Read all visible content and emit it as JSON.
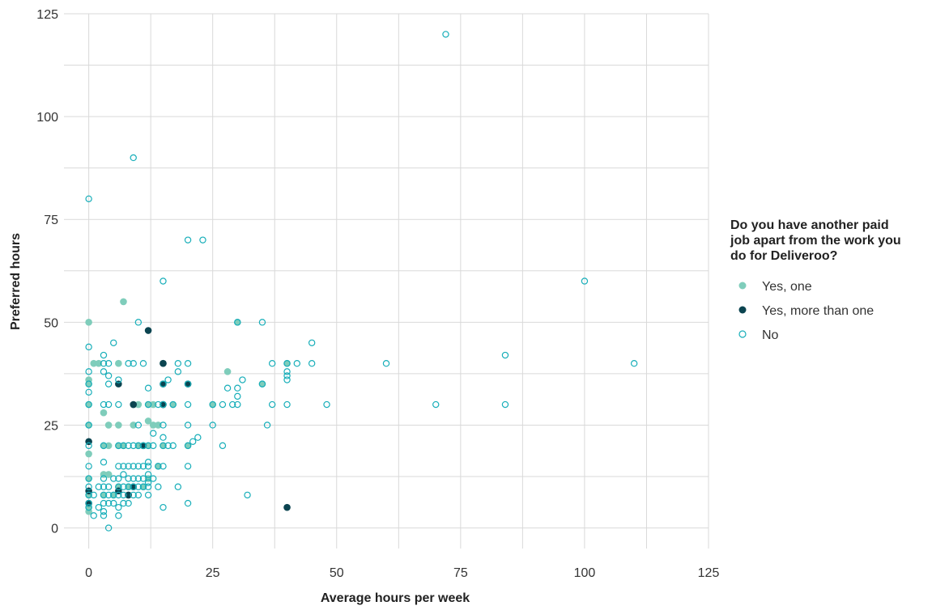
{
  "chart_data": {
    "type": "scatter",
    "xlabel": "Average hours per week",
    "ylabel": "Preferred hours",
    "xlim": [
      -5,
      125
    ],
    "ylim": [
      -5,
      125
    ],
    "x_ticks": [
      0,
      25,
      50,
      75,
      100,
      125
    ],
    "y_ticks": [
      0,
      25,
      50,
      75,
      100,
      125
    ],
    "grid": true,
    "legend": {
      "title_lines": [
        "Do you have another paid",
        "job apart from the work you",
        "do for Deliveroo?"
      ],
      "placement": "right"
    },
    "colors": {
      "yes_one": "#7fcdbb",
      "yes_more": "#0b4450",
      "no": "#17aeb9"
    },
    "series": [
      {
        "name": "Yes, one",
        "marker": "filled",
        "points": [
          [
            0,
            50
          ],
          [
            0,
            36
          ],
          [
            0,
            35
          ],
          [
            0,
            30
          ],
          [
            0,
            25
          ],
          [
            0,
            18
          ],
          [
            0,
            12
          ],
          [
            0,
            8
          ],
          [
            0,
            5
          ],
          [
            0,
            4
          ],
          [
            1,
            40
          ],
          [
            2,
            40
          ],
          [
            3,
            28
          ],
          [
            3,
            20
          ],
          [
            3,
            13
          ],
          [
            3,
            8
          ],
          [
            4,
            25
          ],
          [
            4,
            20
          ],
          [
            4,
            13
          ],
          [
            5,
            8
          ],
          [
            6,
            40
          ],
          [
            6,
            25
          ],
          [
            6,
            20
          ],
          [
            6,
            10
          ],
          [
            7,
            55
          ],
          [
            7,
            20
          ],
          [
            8,
            10
          ],
          [
            8,
            8
          ],
          [
            9,
            30
          ],
          [
            9,
            25
          ],
          [
            10,
            30
          ],
          [
            10,
            20
          ],
          [
            11,
            20
          ],
          [
            11,
            10
          ],
          [
            12,
            30
          ],
          [
            12,
            26
          ],
          [
            12,
            20
          ],
          [
            12,
            12
          ],
          [
            13,
            30
          ],
          [
            13,
            25
          ],
          [
            14,
            25
          ],
          [
            14,
            15
          ],
          [
            15,
            40
          ],
          [
            15,
            30
          ],
          [
            15,
            20
          ],
          [
            17,
            30
          ],
          [
            20,
            35
          ],
          [
            20,
            20
          ],
          [
            25,
            30
          ],
          [
            28,
            38
          ],
          [
            30,
            50
          ],
          [
            35,
            35
          ],
          [
            40,
            40
          ]
        ]
      },
      {
        "name": "Yes, more than one",
        "marker": "filled-dark",
        "points": [
          [
            0,
            21
          ],
          [
            0,
            9
          ],
          [
            0,
            6
          ],
          [
            6,
            35
          ],
          [
            6,
            9
          ],
          [
            8,
            8
          ],
          [
            9,
            30
          ],
          [
            9,
            10
          ],
          [
            11,
            20
          ],
          [
            12,
            48
          ],
          [
            15,
            40
          ],
          [
            15,
            35
          ],
          [
            15,
            30
          ],
          [
            20,
            35
          ],
          [
            40,
            5
          ]
        ]
      },
      {
        "name": "No",
        "marker": "hollow",
        "points": [
          [
            0,
            80
          ],
          [
            0,
            44
          ],
          [
            0,
            38
          ],
          [
            0,
            35
          ],
          [
            0,
            33
          ],
          [
            0,
            30
          ],
          [
            0,
            25
          ],
          [
            0,
            20
          ],
          [
            0,
            15
          ],
          [
            0,
            12
          ],
          [
            0,
            10
          ],
          [
            0,
            8
          ],
          [
            0,
            6
          ],
          [
            0,
            5
          ],
          [
            1,
            8
          ],
          [
            1,
            3
          ],
          [
            2,
            10
          ],
          [
            2,
            5
          ],
          [
            3,
            42
          ],
          [
            3,
            40
          ],
          [
            3,
            38
          ],
          [
            3,
            30
          ],
          [
            3,
            20
          ],
          [
            3,
            16
          ],
          [
            3,
            12
          ],
          [
            3,
            10
          ],
          [
            3,
            8
          ],
          [
            3,
            6
          ],
          [
            3,
            4
          ],
          [
            3,
            3
          ],
          [
            4,
            40
          ],
          [
            4,
            37
          ],
          [
            4,
            35
          ],
          [
            4,
            30
          ],
          [
            4,
            10
          ],
          [
            4,
            8
          ],
          [
            4,
            6
          ],
          [
            4,
            0
          ],
          [
            5,
            45
          ],
          [
            5,
            12
          ],
          [
            5,
            8
          ],
          [
            5,
            6
          ],
          [
            6,
            36
          ],
          [
            6,
            30
          ],
          [
            6,
            20
          ],
          [
            6,
            15
          ],
          [
            6,
            12
          ],
          [
            6,
            10
          ],
          [
            6,
            8
          ],
          [
            6,
            5
          ],
          [
            6,
            3
          ],
          [
            7,
            20
          ],
          [
            7,
            15
          ],
          [
            7,
            13
          ],
          [
            7,
            10
          ],
          [
            7,
            8
          ],
          [
            7,
            6
          ],
          [
            8,
            40
          ],
          [
            8,
            20
          ],
          [
            8,
            15
          ],
          [
            8,
            12
          ],
          [
            8,
            10
          ],
          [
            8,
            6
          ],
          [
            9,
            90
          ],
          [
            9,
            40
          ],
          [
            9,
            20
          ],
          [
            9,
            15
          ],
          [
            9,
            12
          ],
          [
            9,
            10
          ],
          [
            9,
            8
          ],
          [
            10,
            50
          ],
          [
            10,
            25
          ],
          [
            10,
            20
          ],
          [
            10,
            15
          ],
          [
            10,
            12
          ],
          [
            10,
            10
          ],
          [
            10,
            8
          ],
          [
            11,
            40
          ],
          [
            11,
            20
          ],
          [
            11,
            15
          ],
          [
            11,
            12
          ],
          [
            11,
            10
          ],
          [
            12,
            34
          ],
          [
            12,
            30
          ],
          [
            12,
            20
          ],
          [
            12,
            16
          ],
          [
            12,
            15
          ],
          [
            12,
            13
          ],
          [
            12,
            11
          ],
          [
            12,
            10
          ],
          [
            12,
            8
          ],
          [
            13,
            23
          ],
          [
            13,
            20
          ],
          [
            13,
            12
          ],
          [
            14,
            30
          ],
          [
            14,
            15
          ],
          [
            14,
            10
          ],
          [
            15,
            60
          ],
          [
            15,
            35
          ],
          [
            15,
            30
          ],
          [
            15,
            25
          ],
          [
            15,
            22
          ],
          [
            15,
            20
          ],
          [
            15,
            15
          ],
          [
            15,
            5
          ],
          [
            16,
            36
          ],
          [
            16,
            20
          ],
          [
            17,
            30
          ],
          [
            17,
            20
          ],
          [
            18,
            40
          ],
          [
            18,
            38
          ],
          [
            18,
            10
          ],
          [
            20,
            70
          ],
          [
            20,
            40
          ],
          [
            20,
            35
          ],
          [
            20,
            30
          ],
          [
            20,
            25
          ],
          [
            20,
            20
          ],
          [
            20,
            15
          ],
          [
            20,
            6
          ],
          [
            21,
            21
          ],
          [
            22,
            22
          ],
          [
            23,
            70
          ],
          [
            25,
            30
          ],
          [
            25,
            25
          ],
          [
            27,
            30
          ],
          [
            27,
            20
          ],
          [
            28,
            34
          ],
          [
            29,
            30
          ],
          [
            30,
            34
          ],
          [
            30,
            32
          ],
          [
            30,
            30
          ],
          [
            30,
            50
          ],
          [
            31,
            36
          ],
          [
            32,
            8
          ],
          [
            35,
            50
          ],
          [
            35,
            35
          ],
          [
            36,
            25
          ],
          [
            37,
            40
          ],
          [
            37,
            30
          ],
          [
            40,
            40
          ],
          [
            40,
            38
          ],
          [
            40,
            37
          ],
          [
            40,
            36
          ],
          [
            40,
            30
          ],
          [
            42,
            40
          ],
          [
            45,
            45
          ],
          [
            45,
            40
          ],
          [
            48,
            30
          ],
          [
            60,
            40
          ],
          [
            70,
            30
          ],
          [
            72,
            120
          ],
          [
            84,
            42
          ],
          [
            84,
            30
          ],
          [
            100,
            60
          ],
          [
            110,
            40
          ]
        ]
      }
    ]
  }
}
